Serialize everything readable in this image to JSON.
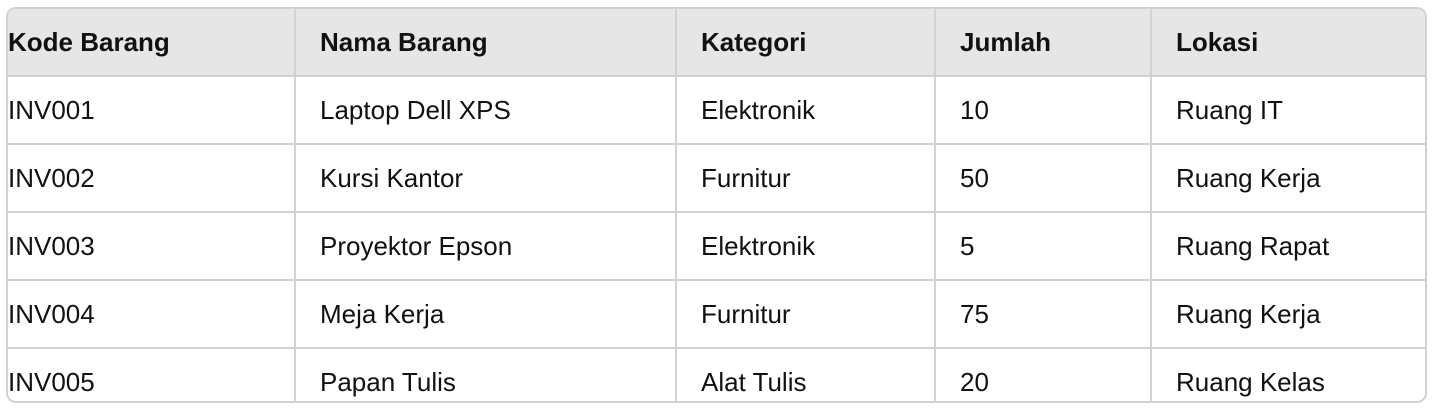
{
  "table": {
    "headers": [
      "Kode Barang",
      "Nama Barang",
      "Kategori",
      "Jumlah",
      "Lokasi"
    ],
    "rows": [
      [
        "INV001",
        "Laptop Dell XPS",
        "Elektronik",
        "10",
        "Ruang IT"
      ],
      [
        "INV002",
        "Kursi Kantor",
        "Furnitur",
        "50",
        "Ruang Kerja"
      ],
      [
        "INV003",
        "Proyektor Epson",
        "Elektronik",
        "5",
        "Ruang Rapat"
      ],
      [
        "INV004",
        "Meja Kerja",
        "Furnitur",
        "75",
        "Ruang Kerja"
      ],
      [
        "INV005",
        "Papan Tulis",
        "Alat Tulis",
        "20",
        "Ruang Kelas"
      ]
    ]
  },
  "colors": {
    "header_bg": "#e6e6e6",
    "border": "#d2d2d2",
    "text": "#111111"
  }
}
